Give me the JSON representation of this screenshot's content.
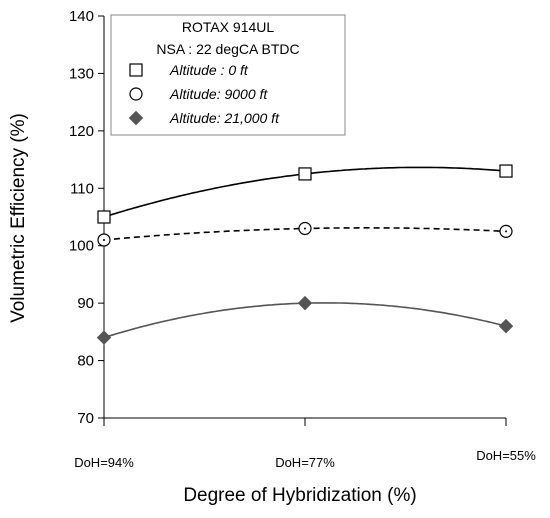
{
  "chart_data": {
    "type": "line",
    "title": "",
    "xlabel": "Degree of Hybridization (%)",
    "ylabel": "Volumetric Efficiency (%)",
    "categories": [
      "DoH=94%",
      "DoH=77%",
      "DoH=55%"
    ],
    "ylim": [
      70,
      140
    ],
    "yticks": [
      70,
      80,
      90,
      100,
      110,
      120,
      130,
      140
    ],
    "grid": false,
    "legend": {
      "placement": "top-left",
      "title_lines": [
        "ROTAX 914UL",
        "NSA : 22 degCA BTDC"
      ]
    },
    "series": [
      {
        "name": "Altitude : 0 ft",
        "values": [
          105,
          112.5,
          113
        ],
        "marker": "open-square",
        "line_style": "solid",
        "color": "#000000"
      },
      {
        "name": "Altitude: 9000 ft",
        "values": [
          101,
          103,
          102.5
        ],
        "marker": "open-circle",
        "line_style": "dashed",
        "color": "#000000"
      },
      {
        "name": "Altitude: 21,000 ft",
        "values": [
          84,
          90,
          86
        ],
        "marker": "filled-diamond",
        "line_style": "solid",
        "color": "#555555"
      }
    ]
  }
}
